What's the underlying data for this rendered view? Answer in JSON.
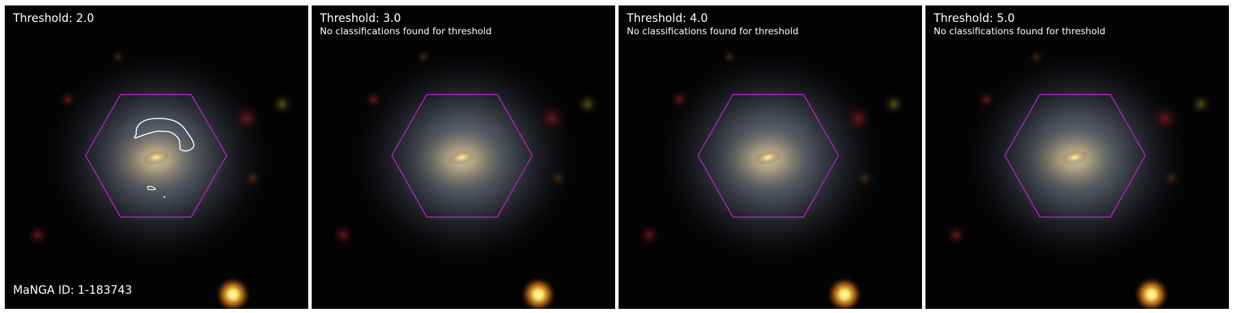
{
  "colors": {
    "page_background": "#ffffff",
    "sky_background": "#030303",
    "hexagon_outline": "#c020c8",
    "contour": "#ffffff",
    "galaxy_core": "#f0d590",
    "galaxy_halo": "#7c8aa0",
    "foreground_star": "#ffd640",
    "faint_source": "#5a1414"
  },
  "panels": [
    {
      "threshold_label": "Threshold: 2.0",
      "note": "",
      "manga_id": "MaNGA ID: 1-183743",
      "has_contours": true
    },
    {
      "threshold_label": "Threshold: 3.0",
      "note": "No classifications found for threshold",
      "manga_id": "",
      "has_contours": false
    },
    {
      "threshold_label": "Threshold: 4.0",
      "note": "No classifications found for threshold",
      "manga_id": "",
      "has_contours": false
    },
    {
      "threshold_label": "Threshold: 5.0",
      "note": "No classifications found for threshold",
      "manga_id": "",
      "has_contours": false
    }
  ],
  "overlays": {
    "ifu_footprint_icon": "hexagon-outline",
    "contour_icon": "contour-line"
  }
}
